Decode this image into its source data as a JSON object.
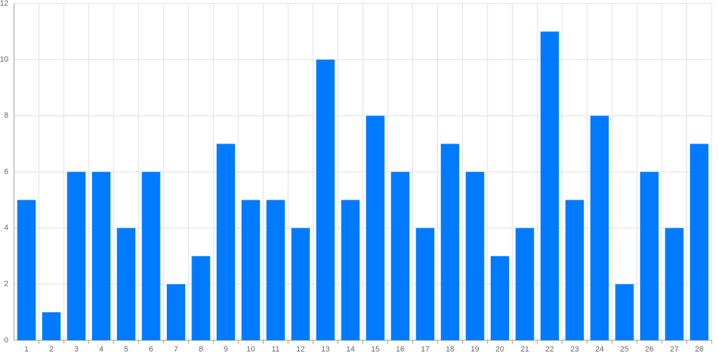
{
  "chart_data": {
    "type": "bar",
    "categories": [
      "1",
      "2",
      "3",
      "4",
      "5",
      "6",
      "7",
      "8",
      "9",
      "10",
      "11",
      "12",
      "13",
      "14",
      "15",
      "16",
      "17",
      "18",
      "19",
      "20",
      "21",
      "22",
      "23",
      "24",
      "25",
      "26",
      "27",
      "28"
    ],
    "values": [
      5,
      1,
      6,
      6,
      4,
      6,
      2,
      3,
      7,
      5,
      5,
      4,
      10,
      5,
      8,
      6,
      4,
      7,
      6,
      3,
      4,
      11,
      5,
      8,
      2,
      6,
      4,
      7
    ],
    "color": "#007bff",
    "ylim": [
      0,
      12
    ],
    "yticks": [
      0,
      2,
      4,
      6,
      8,
      10,
      12
    ],
    "grid": true
  }
}
